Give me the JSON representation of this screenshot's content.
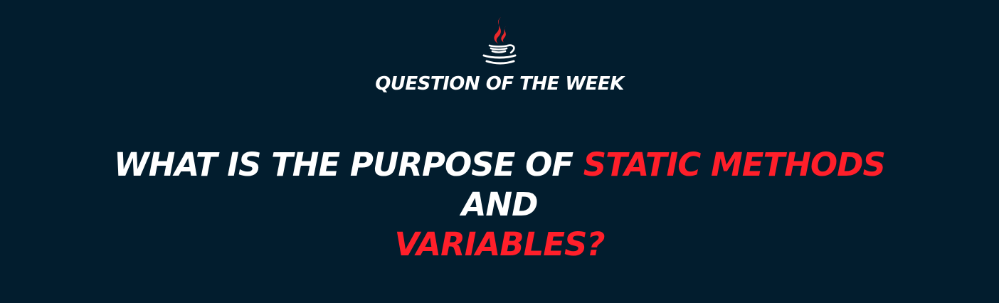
{
  "logo": {
    "icon": "java-coffee-cup-icon",
    "steam_color": "#e8282b",
    "cup_color": "#ffffff"
  },
  "kicker": {
    "text": "QUESTION OF THE WEEK"
  },
  "headline": {
    "part1": "WHAT IS THE PURPOSE OF ",
    "highlight1": "STATIC METHODS",
    "part2": " AND",
    "highlight2": "VARIABLES?"
  },
  "colors": {
    "background": "#021d2e",
    "text": "#ffffff",
    "accent": "#ff1f2a"
  }
}
